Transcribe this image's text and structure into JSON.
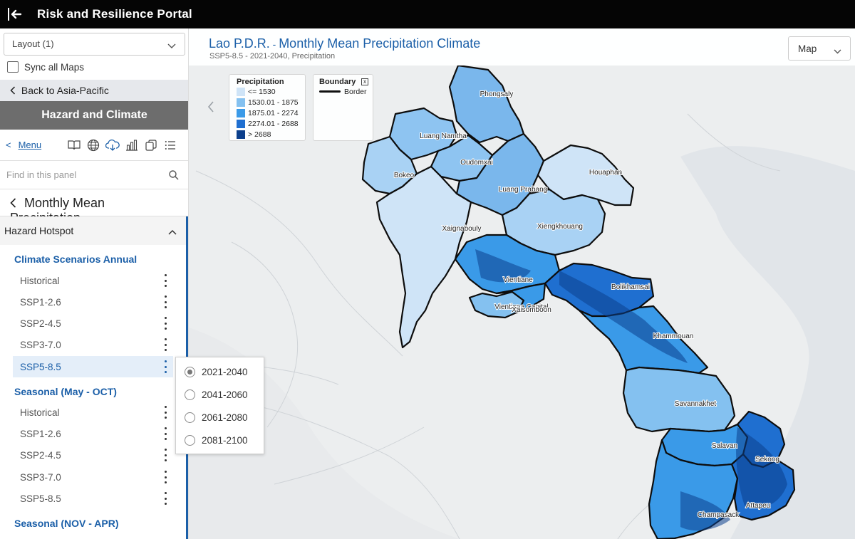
{
  "app": {
    "title": "Risk and Resilience Portal"
  },
  "sidebar": {
    "layout_value": "Layout (1)",
    "sync_label": "Sync all Maps",
    "back_label": "Back to Asia-Pacific",
    "band_title": "Hazard and Climate",
    "menu_back": "<",
    "menu_label": "Menu",
    "menu_tools": [
      "book-icon",
      "globe-icon",
      "cloud-download-icon",
      "bar-chart-icon",
      "layers-copy-icon",
      "list-icon"
    ],
    "search_placeholder": "Find in this panel",
    "section_title": "Monthly Mean Precipitation",
    "hotspot_label": "Hazard Hotspot",
    "groups": [
      {
        "title": "Climate Scenarios Annual",
        "items": [
          "Historical",
          "SSP1-2.6",
          "SSP2-4.5",
          "SSP3-7.0",
          "SSP5-8.5"
        ],
        "selected": 4
      },
      {
        "title": "Seasonal (May - OCT)",
        "items": [
          "Historical",
          "SSP1-2.6",
          "SSP2-4.5",
          "SSP3-7.0",
          "SSP5-8.5"
        ]
      },
      {
        "title": "Seasonal (NOV - APR)",
        "items": []
      }
    ]
  },
  "period_popup": {
    "options": [
      "2021-2040",
      "2041-2060",
      "2061-2080",
      "2081-2100"
    ],
    "selected": 0
  },
  "map": {
    "title_country": "Lao P.D.R.",
    "title_dash": " - ",
    "title_rest": "Monthly Mean Precipitation Climate",
    "subtitle": "SSP5-8.5 - 2021-2040, Precipitation",
    "basemap_select": "Map",
    "legend_precip": {
      "title": "Precipitation",
      "classes": [
        {
          "label": "<= 1530",
          "color": "#cfe4f7"
        },
        {
          "label": "1530.01 - 1875",
          "color": "#84c1f0"
        },
        {
          "label": "1875.01 - 2274",
          "color": "#3a9ae8"
        },
        {
          "label": "2274.01 - 2688",
          "color": "#1f6fd0"
        },
        {
          "label": "> 2688",
          "color": "#0b3f8c"
        }
      ]
    },
    "legend_boundary": {
      "title": "Boundary",
      "item": "Border",
      "close": "x"
    },
    "provinces": [
      "Phongsaly",
      "Luang Namtha",
      "Oudomxai",
      "Bokeo",
      "Luang Prabang",
      "Houaphan",
      "Xaignabouly",
      "Xiengkhouang",
      "Vientiane",
      "Vientiane Capital",
      "Xaisomboon",
      "Bolikhamsai",
      "Khammouan",
      "Savannakhet",
      "Salavan",
      "Sekong",
      "Champasack",
      "Attapeu"
    ]
  }
}
